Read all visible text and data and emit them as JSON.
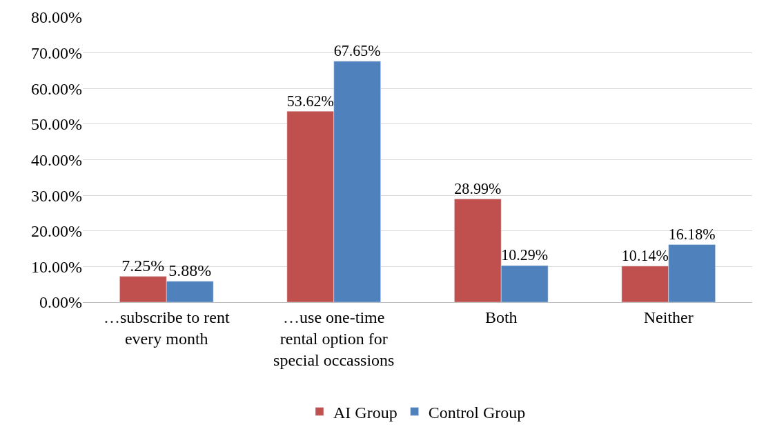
{
  "chart_data": {
    "type": "bar",
    "categories": [
      "…subscribe to rent every month",
      "…use one-time rental option for special occassions",
      "Both",
      "Neither"
    ],
    "series": [
      {
        "name": "AI Group",
        "color": "#c0504d",
        "values": [
          7.25,
          53.62,
          28.99,
          10.14
        ],
        "value_labels": [
          "7.25%",
          "53.62%",
          "28.99%",
          "10.14%"
        ]
      },
      {
        "name": "Control Group",
        "color": "#4f81bd",
        "values": [
          5.88,
          67.65,
          10.29,
          16.18
        ],
        "value_labels": [
          "5.88%",
          "67.65%",
          "10.29%",
          "16.18%"
        ]
      }
    ],
    "ylim": [
      0,
      80
    ],
    "yticks": [
      {
        "value": 0,
        "label": "0.00%"
      },
      {
        "value": 10,
        "label": "10.00%"
      },
      {
        "value": 20,
        "label": "20.00%"
      },
      {
        "value": 30,
        "label": "30.00%"
      },
      {
        "value": 40,
        "label": "40.00%"
      },
      {
        "value": 50,
        "label": "50.00%"
      },
      {
        "value": 60,
        "label": "60.00%"
      },
      {
        "value": 70,
        "label": "70.00%"
      },
      {
        "value": 80,
        "label": "80.00%"
      }
    ],
    "grid": "y",
    "legend": "bottom",
    "data_labels": true
  }
}
